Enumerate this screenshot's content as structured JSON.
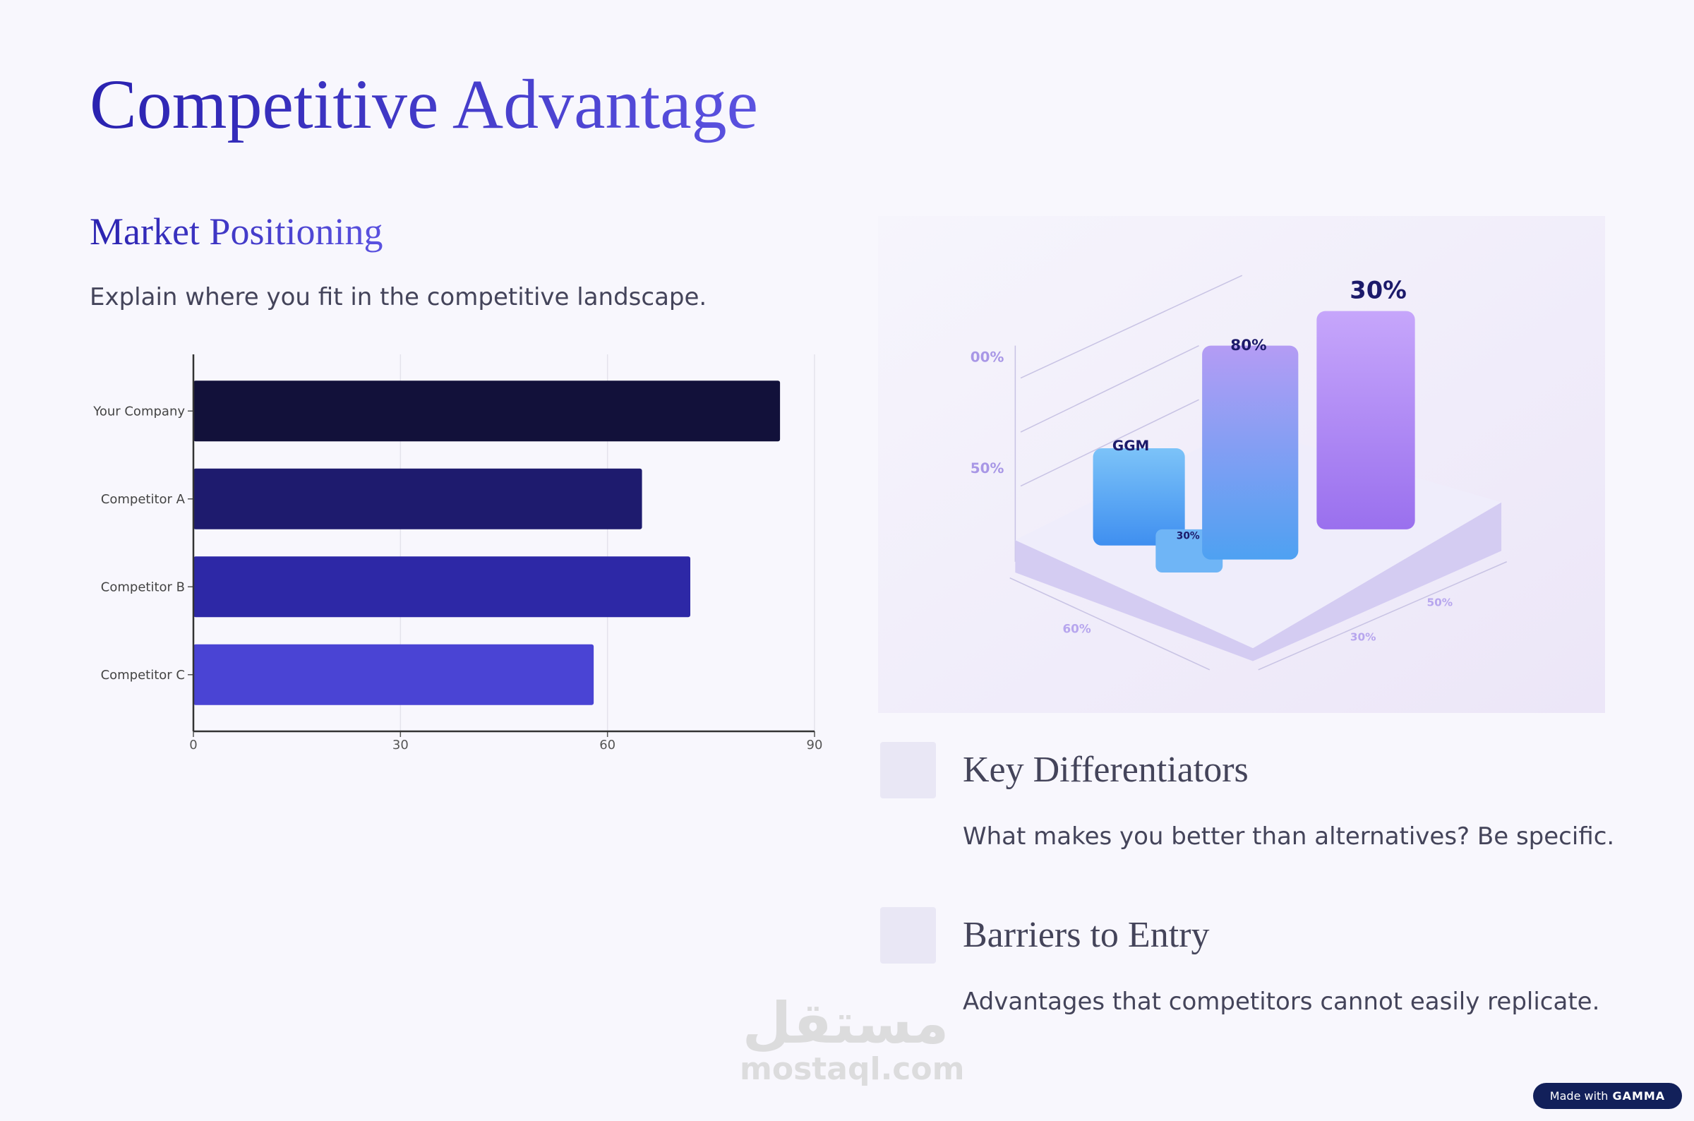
{
  "header": {
    "title": "Competitive Advantage"
  },
  "market": {
    "heading": "Market Positioning",
    "text": "Explain where you fit in the competitive landscape."
  },
  "chart_data": {
    "type": "bar",
    "orientation": "horizontal",
    "categories": [
      "Your Company",
      "Competitor A",
      "Competitor B",
      "Competitor C"
    ],
    "values": [
      85,
      65,
      72,
      58
    ],
    "colors": [
      "#12113a",
      "#1e1b6e",
      "#2d28a6",
      "#4a44d4"
    ],
    "xlim": [
      0,
      90
    ],
    "xticks": [
      0,
      30,
      60,
      90
    ],
    "grid": true
  },
  "illustration": {
    "labels": [
      "00%",
      "50%",
      "GGM",
      "80%",
      "30%",
      "30%",
      "60%",
      "30%",
      "50%"
    ]
  },
  "sections": [
    {
      "heading": "Key Differentiators",
      "text": "What makes you better than alternatives? Be specific."
    },
    {
      "heading": "Barriers to Entry",
      "text": "Advantages that competitors cannot easily replicate."
    }
  ],
  "watermark": {
    "arabic": "مستقل",
    "latin": "mostaql.com"
  },
  "badge": {
    "prefix": "Made with",
    "brand": "GAMMA"
  }
}
